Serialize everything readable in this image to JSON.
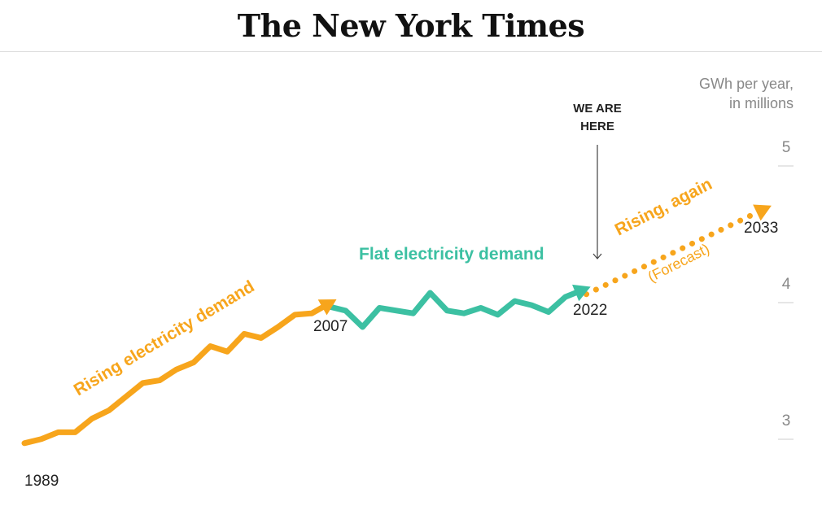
{
  "masthead": {
    "title": "The New York Times"
  },
  "chart_data": {
    "type": "line",
    "title": "",
    "ylabel_lines": [
      "GWh per year,",
      "in millions"
    ],
    "ylim": [
      2.8,
      5.1
    ],
    "xlim": [
      1989,
      2033
    ],
    "yticks": [
      "3",
      "4",
      "5"
    ],
    "ytick_values": [
      3,
      4,
      5
    ],
    "grid": false,
    "colors": {
      "rising": "#f7a51c",
      "flat": "#3cc0a2",
      "axis": "#999999",
      "text": "#222222"
    },
    "series": [
      {
        "name": "Rising electricity demand",
        "segment": "historical-rising",
        "x": [
          1989,
          1990,
          1991,
          1992,
          1993,
          1994,
          1995,
          1996,
          1997,
          1998,
          1999,
          2000,
          2001,
          2002,
          2003,
          2004,
          2005,
          2006,
          2007
        ],
        "y": [
          2.9,
          2.93,
          2.98,
          2.98,
          3.08,
          3.14,
          3.24,
          3.34,
          3.36,
          3.44,
          3.49,
          3.61,
          3.57,
          3.7,
          3.67,
          3.75,
          3.84,
          3.85,
          3.92
        ]
      },
      {
        "name": "Flat electricity demand",
        "segment": "historical-flat",
        "x": [
          2007,
          2008,
          2009,
          2010,
          2011,
          2012,
          2013,
          2014,
          2015,
          2016,
          2017,
          2018,
          2019,
          2020,
          2021,
          2022
        ],
        "y": [
          3.9,
          3.87,
          3.75,
          3.89,
          3.87,
          3.85,
          4.0,
          3.87,
          3.85,
          3.89,
          3.84,
          3.94,
          3.91,
          3.86,
          3.97,
          4.02
        ]
      },
      {
        "name": "Rising, again",
        "segment": "forecast",
        "x": [
          2022,
          2033
        ],
        "y": [
          3.99,
          4.61
        ]
      }
    ],
    "annotations": {
      "rising_label": "Rising electricity demand",
      "flat_label": "Flat electricity demand",
      "again_label": "Rising, again",
      "forecast_label": "(Forecast)",
      "here_line1": "WE ARE",
      "here_line2": "HERE",
      "year_1989": "1989",
      "year_2007": "2007",
      "year_2022": "2022",
      "year_2033": "2033"
    }
  }
}
